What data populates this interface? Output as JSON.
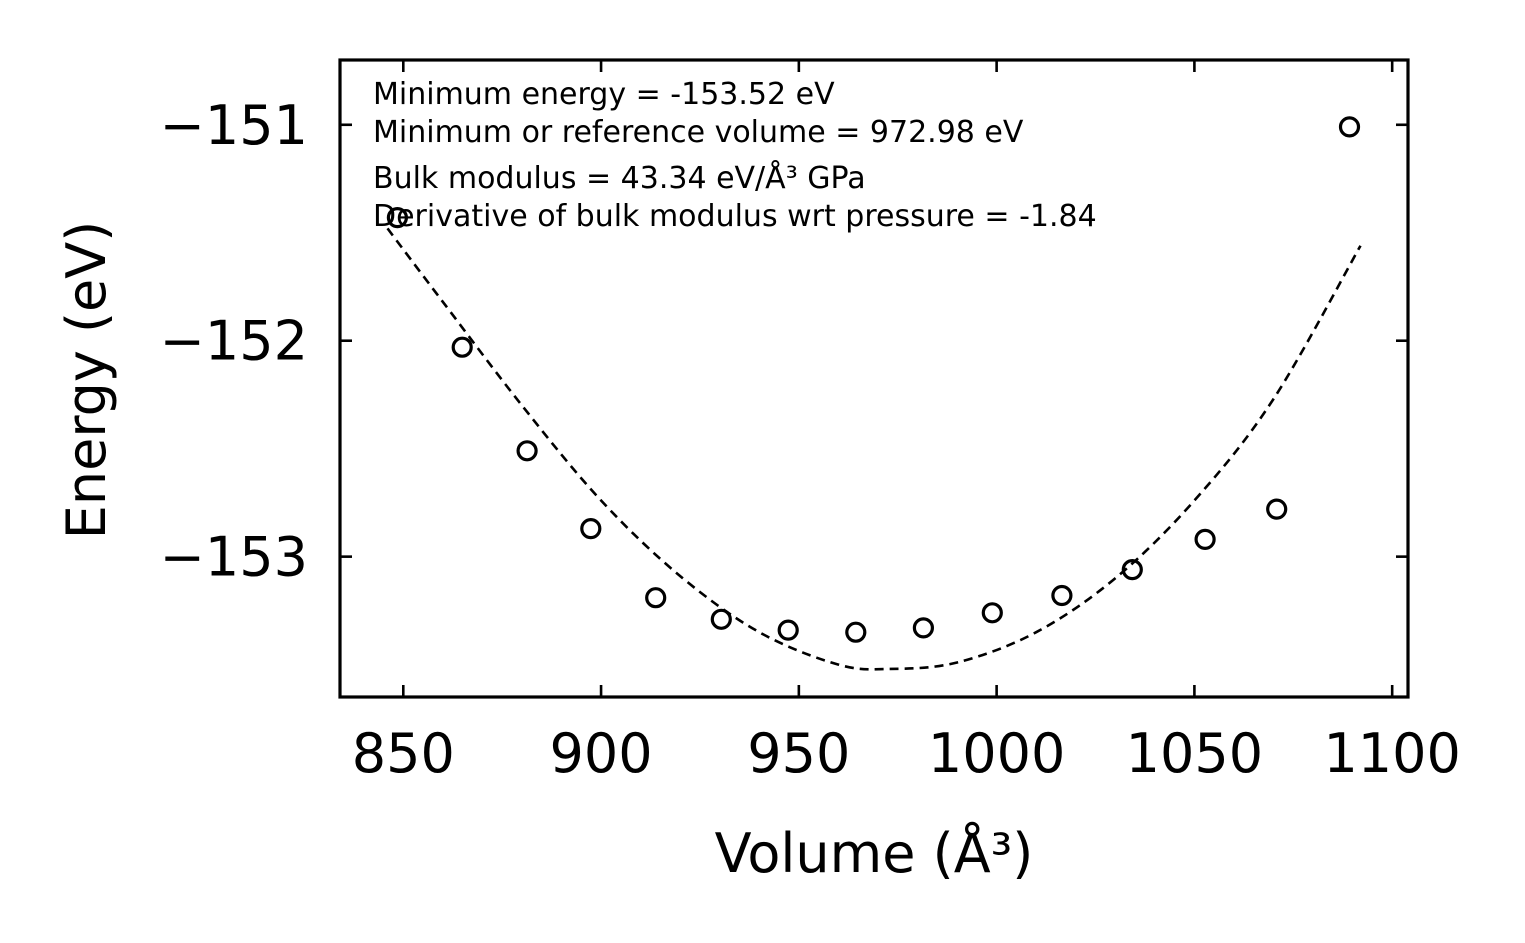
{
  "chart_data": {
    "type": "scatter",
    "xlabel": "Volume (Å³)",
    "ylabel": "Energy (eV)",
    "xlim": [
      834,
      1104
    ],
    "ylim": [
      -153.65,
      -150.7
    ],
    "xticks": [
      850,
      900,
      950,
      1000,
      1050,
      1100
    ],
    "xtick_labels": [
      "850",
      "900",
      "950",
      "1000",
      "1050",
      "1100"
    ],
    "yticks": [
      -153,
      -152,
      -151
    ],
    "ytick_labels": [
      "−153",
      "−152",
      "−151"
    ],
    "grid": false,
    "annotations": [
      "Minimum energy = -153.52 eV",
      "Minimum or reference volume = 972.98 eV",
      "Bulk modulus = 43.34 eV/Å³ GPa",
      "Derivative of bulk modulus wrt pressure = -1.84"
    ],
    "series": [
      {
        "kind": "points",
        "marker": "open-circle",
        "x": [
          848.5,
          864.9,
          881.3,
          897.4,
          913.8,
          930.4,
          947.3,
          964.4,
          981.5,
          998.9,
          1016.5,
          1034.3,
          1052.7,
          1070.8,
          1089.2
        ],
        "y": [
          -151.43,
          -152.03,
          -152.51,
          -152.87,
          -153.19,
          -153.29,
          -153.34,
          -153.35,
          -153.33,
          -153.26,
          -153.18,
          -153.06,
          -152.92,
          -152.78,
          -151.01
        ]
      },
      {
        "kind": "fit",
        "style": "dashed",
        "x": [
          846,
          860,
          880,
          900,
          920,
          940,
          960,
          972.98,
          990,
          1010,
          1030,
          1050,
          1070,
          1092
        ],
        "y": [
          -151.48,
          -151.82,
          -152.3,
          -152.74,
          -153.09,
          -153.35,
          -153.5,
          -153.52,
          -153.49,
          -153.35,
          -153.1,
          -152.74,
          -152.27,
          -151.56
        ]
      }
    ]
  }
}
